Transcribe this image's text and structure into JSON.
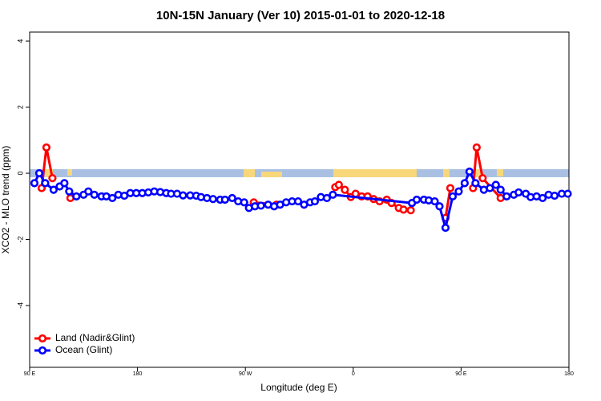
{
  "chart_data": {
    "type": "line",
    "title": "10N-15N January (Ver 10)   2015-01-01 to 2020-12-18",
    "x_label": "Longitude (deg E)",
    "y_label": "XCO2 - MLO trend (ppm)",
    "xlim": [
      90,
      540
    ],
    "ylim": [
      -5.87,
      4.27
    ],
    "xticks": [
      {
        "value": 90,
        "label": "90 E"
      },
      {
        "value": 180,
        "label": "180"
      },
      {
        "value": 270,
        "label": "90 W"
      },
      {
        "value": 360,
        "label": "0"
      },
      {
        "value": 450,
        "label": "90 E"
      },
      {
        "value": 540,
        "label": "180"
      }
    ],
    "yticks": [
      -4,
      -2,
      0,
      2,
      4
    ],
    "legend": "bottomleft",
    "series": [
      {
        "name": "Land (Nadir&Glint)",
        "color": "#ff0000",
        "x": [
          100,
          104,
          109,
          null,
          124,
          null,
          277,
          296,
          null,
          345,
          348,
          353,
          358,
          362,
          367,
          372,
          377,
          382,
          388,
          392,
          398,
          402,
          408,
          null,
          437,
          441,
          null,
          460,
          463,
          468,
          483
        ],
        "values": [
          -0.45,
          0.78,
          -0.15,
          null,
          -0.75,
          null,
          -0.88,
          -0.95,
          null,
          -0.42,
          -0.35,
          -0.5,
          -0.72,
          -0.62,
          -0.7,
          -0.7,
          -0.78,
          -0.85,
          -0.8,
          -0.9,
          -1.05,
          -1.1,
          -1.12,
          null,
          -1.35,
          -0.45,
          null,
          -0.45,
          0.78,
          -0.15,
          -0.75
        ]
      },
      {
        "name": "Ocean (Glint)",
        "color": "#0000ff",
        "x": [
          94,
          98,
          103,
          110,
          115,
          119,
          123,
          129,
          135,
          139,
          144,
          150,
          154,
          159,
          164,
          169,
          174,
          179,
          184,
          189,
          194,
          199,
          204,
          208,
          213,
          218,
          224,
          229,
          233,
          238,
          243,
          249,
          253,
          259,
          264,
          269,
          273,
          278,
          283,
          289,
          294,
          299,
          304,
          309,
          314,
          319,
          324,
          328,
          333,
          338,
          343,
          409,
          413,
          419,
          423,
          428,
          432,
          437,
          443,
          448,
          453,
          457,
          462,
          469,
          474,
          479,
          483,
          488,
          494,
          498,
          504,
          508,
          513,
          518,
          523,
          528,
          534,
          539
        ],
        "values": [
          -0.3,
          0.0,
          -0.3,
          -0.5,
          -0.4,
          -0.3,
          -0.55,
          -0.7,
          -0.65,
          -0.55,
          -0.65,
          -0.7,
          -0.7,
          -0.75,
          -0.65,
          -0.68,
          -0.6,
          -0.6,
          -0.6,
          -0.58,
          -0.55,
          -0.57,
          -0.6,
          -0.62,
          -0.62,
          -0.67,
          -0.67,
          -0.68,
          -0.72,
          -0.75,
          -0.78,
          -0.8,
          -0.8,
          -0.75,
          -0.85,
          -0.88,
          -1.05,
          -1.0,
          -0.98,
          -0.95,
          -1.0,
          -0.95,
          -0.88,
          -0.85,
          -0.85,
          -0.95,
          -0.88,
          -0.85,
          -0.72,
          -0.75,
          -0.65,
          -0.9,
          -0.8,
          -0.8,
          -0.82,
          -0.85,
          -1.0,
          -1.65,
          -0.7,
          -0.55,
          -0.3,
          0.05,
          -0.3,
          -0.5,
          -0.45,
          -0.35,
          -0.5,
          -0.7,
          -0.65,
          -0.58,
          -0.62,
          -0.72,
          -0.7,
          -0.75,
          -0.65,
          -0.68,
          -0.62,
          -0.62
        ]
      }
    ]
  }
}
